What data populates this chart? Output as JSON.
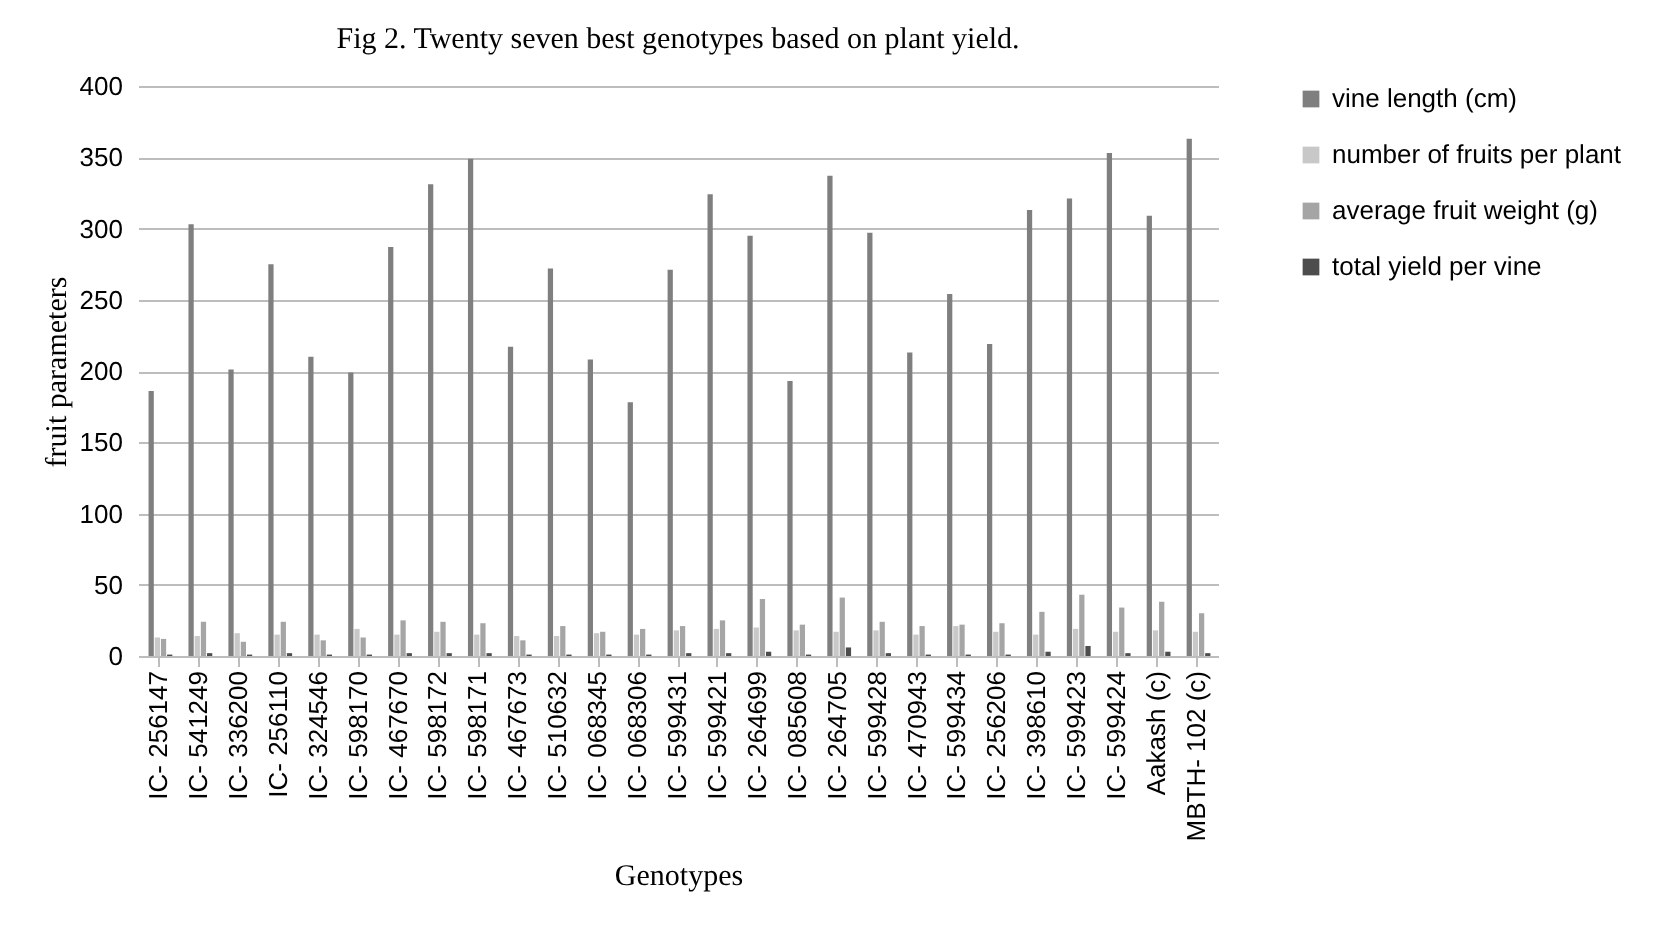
{
  "chart_data": {
    "type": "bar",
    "title": "Fig 2. Twenty seven best genotypes based on plant yield.",
    "xlabel": "Genotypes",
    "ylabel": "fruit parameters",
    "categories": [
      "IC- 256147",
      "IC- 541249",
      "IC- 336200",
      "IC- 256110",
      "IC- 324546",
      "IC- 598170",
      "IC- 467670",
      "IC- 598172",
      "IC- 598171",
      "IC- 467673",
      "IC- 510632",
      "IC- 068345",
      "IC- 068306",
      "IC- 599431",
      "IC- 599421",
      "IC- 264699",
      "IC- 085608",
      "IC- 264705",
      "IC- 599428",
      "IC- 470943",
      "IC- 599434",
      "IC- 256206",
      "IC- 398610",
      "IC- 599423",
      "IC- 599424",
      "Aakash (c)",
      "MBTH- 102 (c)"
    ],
    "series": [
      {
        "name": "vine length (cm)",
        "color": "#7f7f7f",
        "values": [
          186,
          303,
          201,
          275,
          210,
          199,
          287,
          331,
          349,
          217,
          272,
          208,
          178,
          271,
          324,
          295,
          193,
          337,
          297,
          213,
          254,
          219,
          313,
          321,
          353,
          309,
          363
        ]
      },
      {
        "name": "number of fruits per plant",
        "color": "#c8c8c8",
        "values": [
          13,
          14,
          16,
          15,
          15,
          19,
          15,
          17,
          15,
          14,
          14,
          16,
          15,
          18,
          19,
          20,
          18,
          17,
          18,
          15,
          21,
          17,
          15,
          19,
          17,
          18,
          17
        ]
      },
      {
        "name": "average fruit weight (g)",
        "color": "#a5a5a5",
        "values": [
          12,
          24,
          10,
          24,
          11,
          13,
          25,
          24,
          23,
          11,
          21,
          17,
          19,
          21,
          25,
          40,
          22,
          41,
          24,
          21,
          22,
          23,
          31,
          43,
          34,
          38,
          30
        ]
      },
      {
        "name": "total yield per vine",
        "color": "#4d4d4d",
        "values": [
          1,
          2,
          1,
          2,
          1,
          1,
          2,
          2,
          2,
          1,
          1,
          1,
          1,
          2,
          2,
          3,
          1,
          6,
          2,
          1,
          1,
          1,
          3,
          7,
          2,
          3,
          2
        ]
      }
    ],
    "ylim": [
      0,
      400
    ],
    "yticks": [
      0,
      50,
      100,
      150,
      200,
      250,
      300,
      350,
      400
    ],
    "grid": "y",
    "legend": "right"
  }
}
